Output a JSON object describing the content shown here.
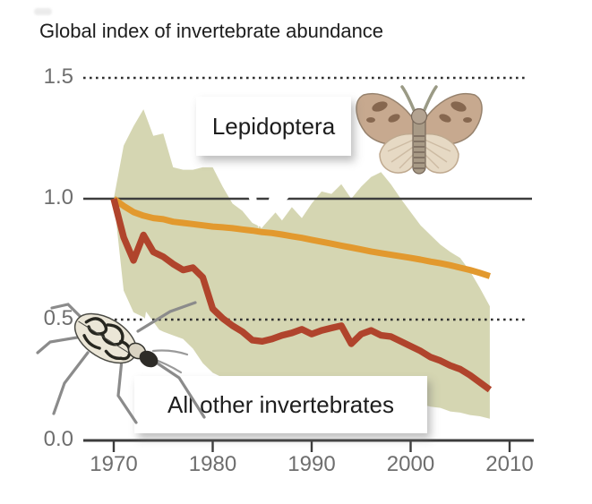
{
  "title": "Global index of invertebrate abundance",
  "annotations": {
    "lepidoptera": "Lepidoptera",
    "others": "All other invertebrates"
  },
  "y_axis": {
    "ticks": [
      "1.5",
      "1.0",
      "0.5",
      "0.0"
    ]
  },
  "x_axis": {
    "ticks": [
      "1970",
      "1980",
      "1990",
      "2000",
      "2010"
    ]
  },
  "colors": {
    "band": "#d5d6b2",
    "lepidoptera_line": "#e2992e",
    "others_line": "#b0442c",
    "grid": "#3d3d3d",
    "dotted_grid": "#2f2f2f",
    "axis_text": "#6e6e6e",
    "title_text": "#1d1d1d"
  },
  "icons": [
    "moth-illustration",
    "beetle-illustration"
  ],
  "chart_data": {
    "type": "line",
    "title": "Global index of invertebrate abundance",
    "xlabel": "",
    "ylabel": "",
    "ylim": [
      0,
      1.5
    ],
    "xlim": [
      1967,
      2012
    ],
    "ytick_values": [
      1.5,
      1.0,
      0.5,
      0.0
    ],
    "xtick_values": [
      1970,
      1980,
      1990,
      2000,
      2010
    ],
    "gridlines": {
      "dotted_at": [
        1.5,
        0.5
      ],
      "solid_at": [
        1.0,
        0.0
      ]
    },
    "legend_position": "inline-callouts",
    "x": [
      1970,
      1971,
      1972,
      1973,
      1974,
      1975,
      1976,
      1977,
      1978,
      1979,
      1980,
      1981,
      1982,
      1983,
      1984,
      1985,
      1986,
      1987,
      1988,
      1989,
      1990,
      1991,
      1992,
      1993,
      1994,
      1995,
      1996,
      1997,
      1998,
      1999,
      2000,
      2001,
      2002,
      2003,
      2004,
      2005,
      2006,
      2007,
      2008
    ],
    "series": [
      {
        "id": "lepidoptera",
        "name": "Lepidoptera",
        "color": "#e2992e",
        "values": [
          1.0,
          0.97,
          0.945,
          0.93,
          0.92,
          0.915,
          0.905,
          0.9,
          0.895,
          0.89,
          0.885,
          0.882,
          0.878,
          0.873,
          0.868,
          0.862,
          0.858,
          0.852,
          0.845,
          0.838,
          0.83,
          0.822,
          0.814,
          0.806,
          0.798,
          0.79,
          0.782,
          0.775,
          0.768,
          0.762,
          0.755,
          0.748,
          0.74,
          0.733,
          0.725,
          0.715,
          0.705,
          0.693,
          0.68
        ]
      },
      {
        "id": "all_other",
        "name": "All other invertebrates",
        "color": "#b0442c",
        "values": [
          1.0,
          0.84,
          0.745,
          0.85,
          0.78,
          0.76,
          0.73,
          0.705,
          0.715,
          0.675,
          0.545,
          0.505,
          0.475,
          0.45,
          0.415,
          0.41,
          0.42,
          0.435,
          0.445,
          0.46,
          0.44,
          0.455,
          0.465,
          0.475,
          0.4,
          0.44,
          0.455,
          0.435,
          0.43,
          0.41,
          0.39,
          0.37,
          0.345,
          0.33,
          0.31,
          0.295,
          0.27,
          0.24,
          0.21
        ]
      },
      {
        "id": "band_top",
        "name": "Confidence band (upper)",
        "color": "#d5d6b2",
        "values": [
          1.0,
          1.22,
          1.3,
          1.37,
          1.26,
          1.27,
          1.13,
          1.12,
          1.12,
          1.13,
          1.13,
          1.05,
          0.98,
          0.95,
          0.9,
          0.88,
          0.96,
          0.91,
          0.965,
          0.92,
          0.98,
          1.03,
          1.02,
          1.06,
          1.0,
          1.05,
          1.09,
          1.11,
          1.06,
          1.0,
          0.945,
          0.89,
          0.85,
          0.81,
          0.78,
          0.755,
          0.7,
          0.63,
          0.555
        ]
      },
      {
        "id": "band_bottom",
        "name": "Confidence band (lower)",
        "color": "#d5d6b2",
        "values": [
          1.0,
          0.62,
          0.53,
          0.51,
          0.47,
          0.45,
          0.435,
          0.42,
          0.38,
          0.32,
          0.28,
          0.26,
          0.25,
          0.24,
          0.235,
          0.23,
          0.22,
          0.225,
          0.225,
          0.22,
          0.225,
          0.22,
          0.21,
          0.21,
          0.2,
          0.195,
          0.19,
          0.18,
          0.17,
          0.16,
          0.155,
          0.15,
          0.14,
          0.135,
          0.12,
          0.115,
          0.105,
          0.1,
          0.09
        ]
      }
    ]
  }
}
